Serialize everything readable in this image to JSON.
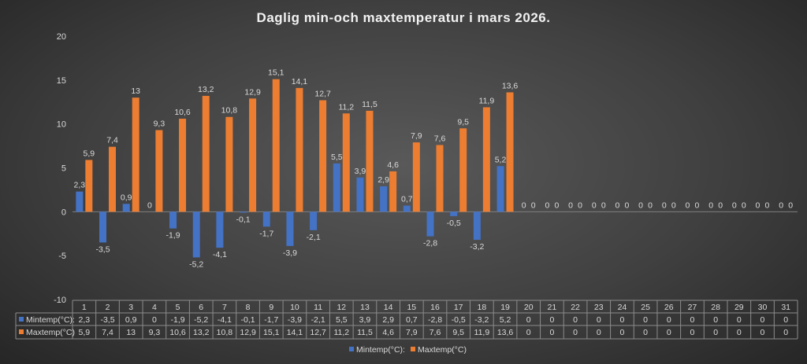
{
  "chart_data": {
    "type": "bar",
    "title": "Daglig min-och maxtemperatur i mars 2026.",
    "xlabel": "",
    "ylabel": "",
    "ylim": [
      -10,
      20
    ],
    "yticks": [
      20,
      15,
      10,
      5,
      0,
      -5,
      -10
    ],
    "grid": false,
    "legend_position": "bottom",
    "categories": [
      "1",
      "2",
      "3",
      "4",
      "5",
      "6",
      "7",
      "8",
      "9",
      "10",
      "11",
      "12",
      "13",
      "14",
      "15",
      "16",
      "17",
      "18",
      "19",
      "20",
      "21",
      "22",
      "23",
      "24",
      "25",
      "26",
      "27",
      "28",
      "29",
      "30",
      "31"
    ],
    "series": [
      {
        "name": "Mintemp(°C):",
        "color": "#4472c4",
        "values": [
          2.3,
          -3.5,
          0.9,
          0,
          -1.9,
          -5.2,
          -4.1,
          -0.1,
          -1.7,
          -3.9,
          -2.1,
          5.5,
          3.9,
          2.9,
          0.7,
          -2.8,
          -0.5,
          -3.2,
          5.2,
          0,
          0,
          0,
          0,
          0,
          0,
          0,
          0,
          0,
          0,
          0,
          0
        ]
      },
      {
        "name": "Maxtemp(°C)",
        "color": "#ed7d31",
        "values": [
          5.9,
          7.4,
          13,
          9.3,
          10.6,
          13.2,
          10.8,
          12.9,
          15.1,
          14.1,
          12.7,
          11.2,
          11.5,
          4.6,
          7.9,
          7.6,
          9.5,
          11.9,
          13.6,
          0,
          0,
          0,
          0,
          0,
          0,
          0,
          0,
          0,
          0,
          0,
          0
        ]
      }
    ]
  }
}
